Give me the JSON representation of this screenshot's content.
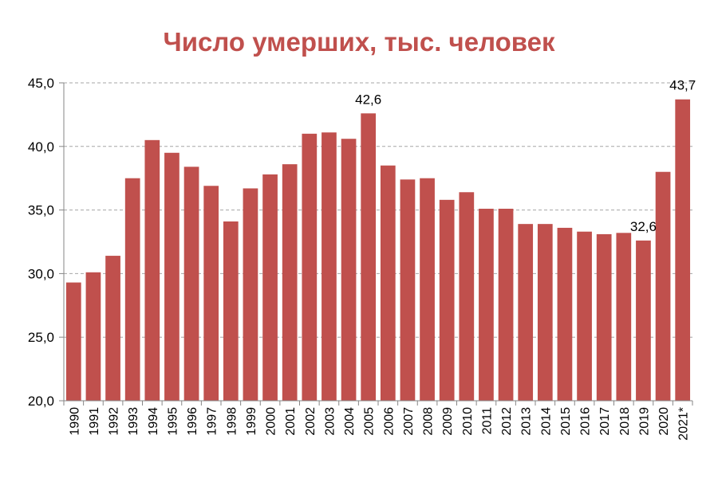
{
  "chart_data": {
    "type": "bar",
    "title": "Число умерших, тыс. человек",
    "xlabel": "",
    "ylabel": "",
    "ylim": [
      20,
      45
    ],
    "yticks": [
      "20,0",
      "25,0",
      "30,0",
      "35,0",
      "40,0",
      "45,0"
    ],
    "grid": true,
    "categories": [
      "1990",
      "1991",
      "1992",
      "1993",
      "1994",
      "1995",
      "1996",
      "1997",
      "1998",
      "1999",
      "2000",
      "2001",
      "2002",
      "2003",
      "2004",
      "2005",
      "2006",
      "2007",
      "2008",
      "2009",
      "2010",
      "2011",
      "2012",
      "2013",
      "2014",
      "2015",
      "2016",
      "2017",
      "2018",
      "2019",
      "2020",
      "2021*"
    ],
    "values": [
      29.3,
      30.1,
      31.4,
      37.5,
      40.5,
      39.5,
      38.4,
      36.9,
      34.1,
      36.7,
      37.8,
      38.6,
      41.0,
      41.1,
      40.6,
      42.6,
      38.5,
      37.4,
      37.5,
      35.8,
      36.4,
      35.1,
      35.1,
      33.9,
      33.9,
      33.6,
      33.3,
      33.1,
      33.2,
      32.6,
      38.0,
      43.7
    ],
    "data_labels": [
      {
        "index": 15,
        "text": "42,6"
      },
      {
        "index": 29,
        "text": "32,6"
      },
      {
        "index": 31,
        "text": "43,7"
      }
    ],
    "colors": {
      "bar": "#c0504d",
      "title": "#c0504d",
      "grid": "#a6a6a6",
      "axis": "#868686",
      "text": "#000000"
    }
  }
}
